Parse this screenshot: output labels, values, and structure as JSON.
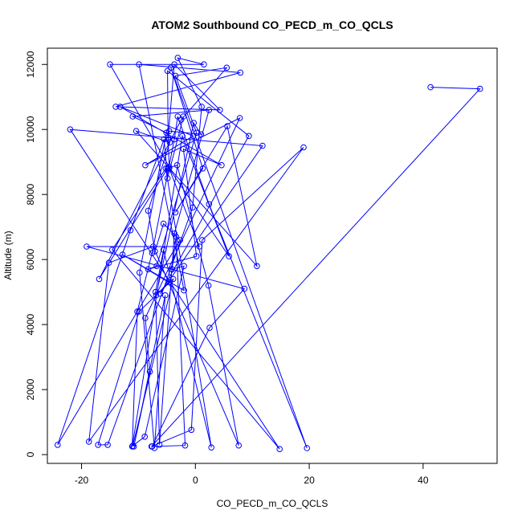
{
  "chart_data": {
    "type": "line",
    "title": "ATOM2 Southbound CO_PECD_m_CO_QCLS",
    "xlabel": "CO_PECD_m_CO_QCLS",
    "ylabel": "Altitude (m)",
    "xlim": [
      -26,
      53
    ],
    "ylim": [
      -270,
      12500
    ],
    "x_ticks": [
      -20,
      0,
      20,
      40
    ],
    "y_ticks": [
      0,
      2000,
      4000,
      6000,
      8000,
      10000,
      12000
    ],
    "color": "#0000ff",
    "marker": "open-circle",
    "series": [
      {
        "points": [
          [
            41.3,
            11300
          ],
          [
            50.0,
            11250
          ],
          [
            -7.7,
            250
          ],
          [
            -0.7,
            760
          ],
          [
            1.2,
            6600
          ],
          [
            19.0,
            9450
          ],
          [
            -18.7,
            400
          ],
          [
            -15.2,
            5900
          ],
          [
            -7.4,
            6400
          ],
          [
            7.6,
            280
          ],
          [
            2.3,
            5200
          ],
          [
            -3.2,
            8900
          ],
          [
            -4.9,
            8800
          ],
          [
            -16.9,
            5400
          ],
          [
            -2.5,
            10300
          ],
          [
            5.5,
            11900
          ],
          [
            -3.5,
            11650
          ],
          [
            0.2,
            9900
          ],
          [
            -6.8,
            5800
          ],
          [
            -8.3,
            5700
          ],
          [
            0.2,
            6100
          ],
          [
            -2.1,
            9400
          ],
          [
            4.6,
            8900
          ],
          [
            -13.2,
            10700
          ],
          [
            -0.4,
            9800
          ],
          [
            -8.8,
            8900
          ],
          [
            7.8,
            10350
          ],
          [
            -8.8,
            4200
          ],
          [
            -8.0,
            2550
          ],
          [
            -10.8,
            250
          ],
          [
            -5.3,
            4900
          ],
          [
            -7.2,
            200
          ],
          [
            -9.8,
            5600
          ],
          [
            -5.1,
            9900
          ],
          [
            -11.0,
            10400
          ],
          [
            2.4,
            10600
          ],
          [
            -3.7,
            6800
          ],
          [
            -6.3,
            300
          ],
          [
            -7.0,
            5000
          ],
          [
            -5.6,
            6300
          ],
          [
            2.8,
            220
          ],
          [
            -5.2,
            8800
          ],
          [
            -14.6,
            6300
          ],
          [
            14.8,
            170
          ],
          [
            -22.0,
            10000
          ],
          [
            11.8,
            9500
          ],
          [
            -6.2,
            4950
          ],
          [
            9.4,
            9800
          ],
          [
            -4.9,
            11800
          ],
          [
            -4.8,
            9700
          ],
          [
            -4.6,
            9950
          ],
          [
            1.0,
            9850
          ],
          [
            -0.3,
            10200
          ],
          [
            -6.9,
            4900
          ],
          [
            -4.7,
            5300
          ],
          [
            -12.8,
            6150
          ],
          [
            -2.0,
            5050
          ],
          [
            -9.9,
            12000
          ],
          [
            7.9,
            11750
          ],
          [
            -14.0,
            10700
          ],
          [
            4.3,
            10600
          ],
          [
            -3.7,
            12000
          ],
          [
            -4.8,
            9750
          ],
          [
            -4.6,
            8850
          ],
          [
            -15.0,
            12000
          ],
          [
            1.5,
            12000
          ],
          [
            -3.1,
            12200
          ],
          [
            1.1,
            10700
          ],
          [
            -0.5,
            7600
          ],
          [
            -15.4,
            300
          ],
          [
            -17.1,
            300
          ],
          [
            -9.9,
            4400
          ],
          [
            -3.9,
            5400
          ],
          [
            -11.0,
            270
          ],
          [
            -8.9,
            550
          ],
          [
            -2.0,
            5800
          ],
          [
            -4.1,
            5700
          ],
          [
            -3.4,
            6700
          ],
          [
            -1.8,
            280
          ],
          [
            -7.6,
            250
          ],
          [
            2.5,
            3900
          ],
          [
            8.6,
            5100
          ],
          [
            -19.1,
            6400
          ],
          [
            0.7,
            6400
          ],
          [
            -4.6,
            8800
          ],
          [
            5.9,
            6100
          ],
          [
            -2.3,
            9800
          ],
          [
            -11.1,
            250
          ],
          [
            -10.2,
            4400
          ],
          [
            -7.6,
            6200
          ],
          [
            -3.7,
            9700
          ],
          [
            -3.1,
            10400
          ],
          [
            2.4,
            7700
          ],
          [
            19.6,
            200
          ],
          [
            -4.3,
            11900
          ],
          [
            1.3,
            8800
          ],
          [
            -3.5,
            7450
          ],
          [
            5.6,
            10100
          ],
          [
            10.8,
            5800
          ],
          [
            -10.4,
            9950
          ],
          [
            -4.5,
            9600
          ],
          [
            -8.3,
            7500
          ],
          [
            -7.1,
            6250
          ],
          [
            -5.6,
            7100
          ],
          [
            -2.7,
            6600
          ],
          [
            -24.2,
            300
          ],
          [
            -11.4,
            6900
          ],
          [
            -5.5,
            9700
          ],
          [
            -4.9,
            8500
          ],
          [
            -2.1,
            10400
          ]
        ]
      }
    ]
  }
}
